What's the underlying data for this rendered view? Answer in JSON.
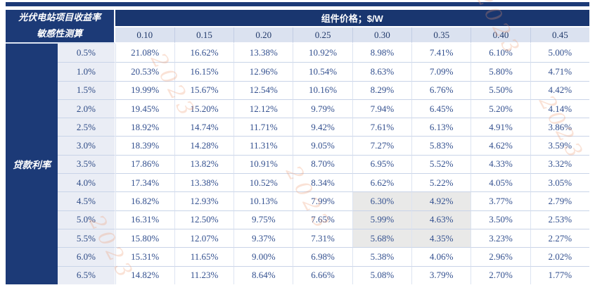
{
  "table": {
    "corner_title_line1": "光伏电站项目收益率",
    "corner_title_line2": "敏感性测算",
    "column_group_header": "组件价格；$/W",
    "row_group_header": "贷款利率",
    "columns": [
      "0.10",
      "0.15",
      "0.20",
      "0.25",
      "0.30",
      "0.35",
      "0.40",
      "0.45"
    ],
    "rows": [
      {
        "rate": "0.5%",
        "values": [
          "21.08%",
          "16.62%",
          "13.38%",
          "10.92%",
          "8.98%",
          "7.41%",
          "6.10%",
          "5.00%"
        ]
      },
      {
        "rate": "1.0%",
        "values": [
          "20.53%",
          "16.15%",
          "12.96%",
          "10.54%",
          "8.63%",
          "7.09%",
          "5.80%",
          "4.71%"
        ]
      },
      {
        "rate": "1.5%",
        "values": [
          "19.99%",
          "15.67%",
          "12.54%",
          "10.16%",
          "8.29%",
          "6.76%",
          "5.50%",
          "4.42%"
        ]
      },
      {
        "rate": "2.0%",
        "values": [
          "19.45%",
          "15.20%",
          "12.12%",
          "9.79%",
          "7.94%",
          "6.45%",
          "5.20%",
          "4.14%"
        ]
      },
      {
        "rate": "2.5%",
        "values": [
          "18.92%",
          "14.74%",
          "11.71%",
          "9.42%",
          "7.61%",
          "6.13%",
          "4.91%",
          "3.86%"
        ]
      },
      {
        "rate": "3.0%",
        "values": [
          "18.39%",
          "14.28%",
          "11.31%",
          "9.05%",
          "7.27%",
          "5.83%",
          "4.62%",
          "3.59%"
        ]
      },
      {
        "rate": "3.5%",
        "values": [
          "17.86%",
          "13.82%",
          "10.91%",
          "8.70%",
          "6.95%",
          "5.52%",
          "4.33%",
          "3.32%"
        ]
      },
      {
        "rate": "4.0%",
        "values": [
          "17.34%",
          "13.38%",
          "10.52%",
          "8.34%",
          "6.62%",
          "5.22%",
          "4.05%",
          "3.05%"
        ]
      },
      {
        "rate": "4.5%",
        "values": [
          "16.82%",
          "12.93%",
          "10.13%",
          "7.99%",
          "6.30%",
          "4.92%",
          "3.77%",
          "2.79%"
        ]
      },
      {
        "rate": "5.0%",
        "values": [
          "16.31%",
          "12.50%",
          "9.75%",
          "7.65%",
          "5.99%",
          "4.63%",
          "3.50%",
          "2.53%"
        ]
      },
      {
        "rate": "5.5%",
        "values": [
          "15.80%",
          "12.07%",
          "9.37%",
          "7.31%",
          "5.68%",
          "4.35%",
          "3.23%",
          "2.27%"
        ]
      },
      {
        "rate": "6.0%",
        "values": [
          "15.31%",
          "11.65%",
          "9.00%",
          "6.98%",
          "5.38%",
          "4.06%",
          "2.96%",
          "2.02%"
        ]
      },
      {
        "rate": "6.5%",
        "values": [
          "14.82%",
          "11.23%",
          "8.64%",
          "6.66%",
          "5.08%",
          "3.79%",
          "2.70%",
          "1.77%"
        ]
      }
    ],
    "highlight": {
      "row_rates": [
        "4.5%",
        "5.0%",
        "5.5%"
      ],
      "column_prices": [
        "0.30",
        "0.35"
      ]
    },
    "colors": {
      "header_bg": "#1c3a77",
      "header_text": "#ffffff",
      "col_header_bg": "#dbe2f0",
      "label_col_bg": "#eaedf5",
      "data_text": "#33508f",
      "highlight_bg": "#e9e9e8",
      "grid_line": "#c9d4e8"
    }
  },
  "watermark": {
    "text": "2023",
    "color": "#f0986f"
  }
}
